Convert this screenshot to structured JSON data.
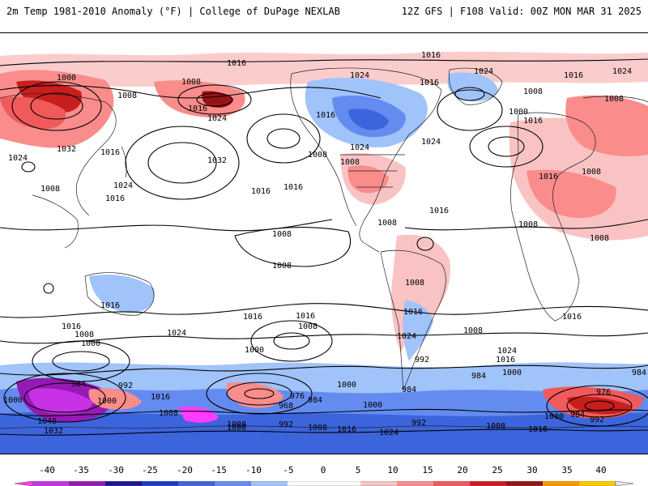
{
  "header": {
    "title": "2m Temp 1981-2010 Anomaly (°F) | College of DuPage NEXLAB",
    "run_info": "12Z GFS | F108 Valid: 00Z MON MAR 31 2025"
  },
  "legend": {
    "ticks": [
      "-40",
      "-35",
      "-30",
      "-25",
      "-20",
      "-15",
      "-10",
      "-5",
      "0",
      "5",
      "10",
      "15",
      "20",
      "25",
      "30",
      "35",
      "40"
    ],
    "colors": [
      "#ff3cff",
      "#c832e6",
      "#9619b4",
      "#1e1496",
      "#1e3cc8",
      "#3c64dc",
      "#648cf0",
      "#a0c3fa",
      "#ffffff",
      "#ffffff",
      "#fac3c3",
      "#fa8c8c",
      "#f05a5a",
      "#c81e1e",
      "#961414",
      "#ff9600",
      "#ffc800",
      "#f5e696"
    ]
  },
  "isobars": {
    "labels": [
      {
        "text": "1016"
      },
      {
        "text": "1016"
      },
      {
        "text": "1000"
      },
      {
        "text": "1008"
      },
      {
        "text": "1024"
      },
      {
        "text": "1016"
      },
      {
        "text": "1024"
      },
      {
        "text": "1008"
      },
      {
        "text": "1016"
      },
      {
        "text": "1024"
      },
      {
        "text": "1008"
      },
      {
        "text": "1000"
      },
      {
        "text": "1016"
      },
      {
        "text": "1008"
      },
      {
        "text": "1016"
      },
      {
        "text": "1024"
      },
      {
        "text": "1032"
      },
      {
        "text": "1016"
      },
      {
        "text": "1032"
      },
      {
        "text": "1016"
      },
      {
        "text": "1008"
      },
      {
        "text": "1024"
      },
      {
        "text": "1024"
      },
      {
        "text": "1008"
      },
      {
        "text": "1016"
      },
      {
        "text": "1016"
      },
      {
        "text": "1016"
      },
      {
        "text": "1024"
      },
      {
        "text": "1024"
      },
      {
        "text": "1016"
      },
      {
        "text": "1008"
      },
      {
        "text": "1016"
      },
      {
        "text": "1008"
      },
      {
        "text": "1008"
      },
      {
        "text": "1008"
      },
      {
        "text": "1008"
      },
      {
        "text": "1008"
      },
      {
        "text": "1008"
      },
      {
        "text": "1016"
      },
      {
        "text": "1016"
      },
      {
        "text": "1024"
      },
      {
        "text": "1016"
      },
      {
        "text": "1016"
      },
      {
        "text": "1008"
      },
      {
        "text": "1008"
      },
      {
        "text": "1000"
      },
      {
        "text": "1000"
      },
      {
        "text": "1008"
      },
      {
        "text": "1016"
      },
      {
        "text": "1024"
      },
      {
        "text": "1016"
      },
      {
        "text": "1008"
      },
      {
        "text": "1024"
      },
      {
        "text": "1016"
      },
      {
        "text": "1000"
      },
      {
        "text": "992"
      },
      {
        "text": "1000"
      },
      {
        "text": "984"
      },
      {
        "text": "984"
      },
      {
        "text": "992"
      },
      {
        "text": "1000"
      },
      {
        "text": "1016"
      },
      {
        "text": "1008"
      },
      {
        "text": "1040"
      },
      {
        "text": "1032"
      },
      {
        "text": "976"
      },
      {
        "text": "984"
      },
      {
        "text": "968"
      },
      {
        "text": "1000"
      },
      {
        "text": "992"
      },
      {
        "text": "1008"
      },
      {
        "text": "1016"
      },
      {
        "text": "1024"
      },
      {
        "text": "984"
      },
      {
        "text": "1000"
      },
      {
        "text": "992"
      },
      {
        "text": "1008"
      },
      {
        "text": "1016"
      },
      {
        "text": "976"
      },
      {
        "text": "984"
      },
      {
        "text": "992"
      },
      {
        "text": "1000"
      },
      {
        "text": "984"
      },
      {
        "text": "1008"
      },
      {
        "text": "1000"
      }
    ]
  }
}
